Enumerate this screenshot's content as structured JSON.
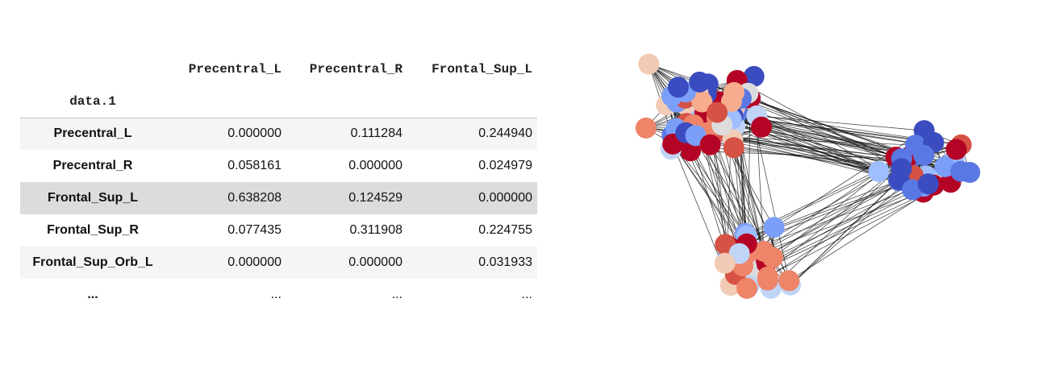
{
  "table": {
    "columns": [
      "Precentral_L",
      "Precentral_R",
      "Frontal_Sup_L"
    ],
    "index_name": "data.1",
    "rows": [
      {
        "label": "Precentral_L",
        "values": [
          "0.000000",
          "0.111284",
          "0.244940"
        ]
      },
      {
        "label": "Precentral_R",
        "values": [
          "0.058161",
          "0.000000",
          "0.024979"
        ]
      },
      {
        "label": "Frontal_Sup_L",
        "values": [
          "0.638208",
          "0.124529",
          "0.000000"
        ]
      },
      {
        "label": "Frontal_Sup_R",
        "values": [
          "0.077435",
          "0.311908",
          "0.224755"
        ]
      },
      {
        "label": "Frontal_Sup_Orb_L",
        "values": [
          "0.000000",
          "0.000000",
          "0.031933"
        ]
      },
      {
        "label": "...",
        "values": [
          "...",
          "...",
          "..."
        ]
      }
    ],
    "highlighted_row": "Frontal_Sup_L"
  },
  "graph": {
    "edge_color": "#111111",
    "node_colormap": "coolwarm",
    "node_colors": [
      "#3b4cc0",
      "#5a78e4",
      "#7b9ff9",
      "#9ebeff",
      "#c0d4f5",
      "#dddcdc",
      "#f2cbb7",
      "#f7ac8e",
      "#ee8468",
      "#d65244",
      "#b40426"
    ]
  }
}
